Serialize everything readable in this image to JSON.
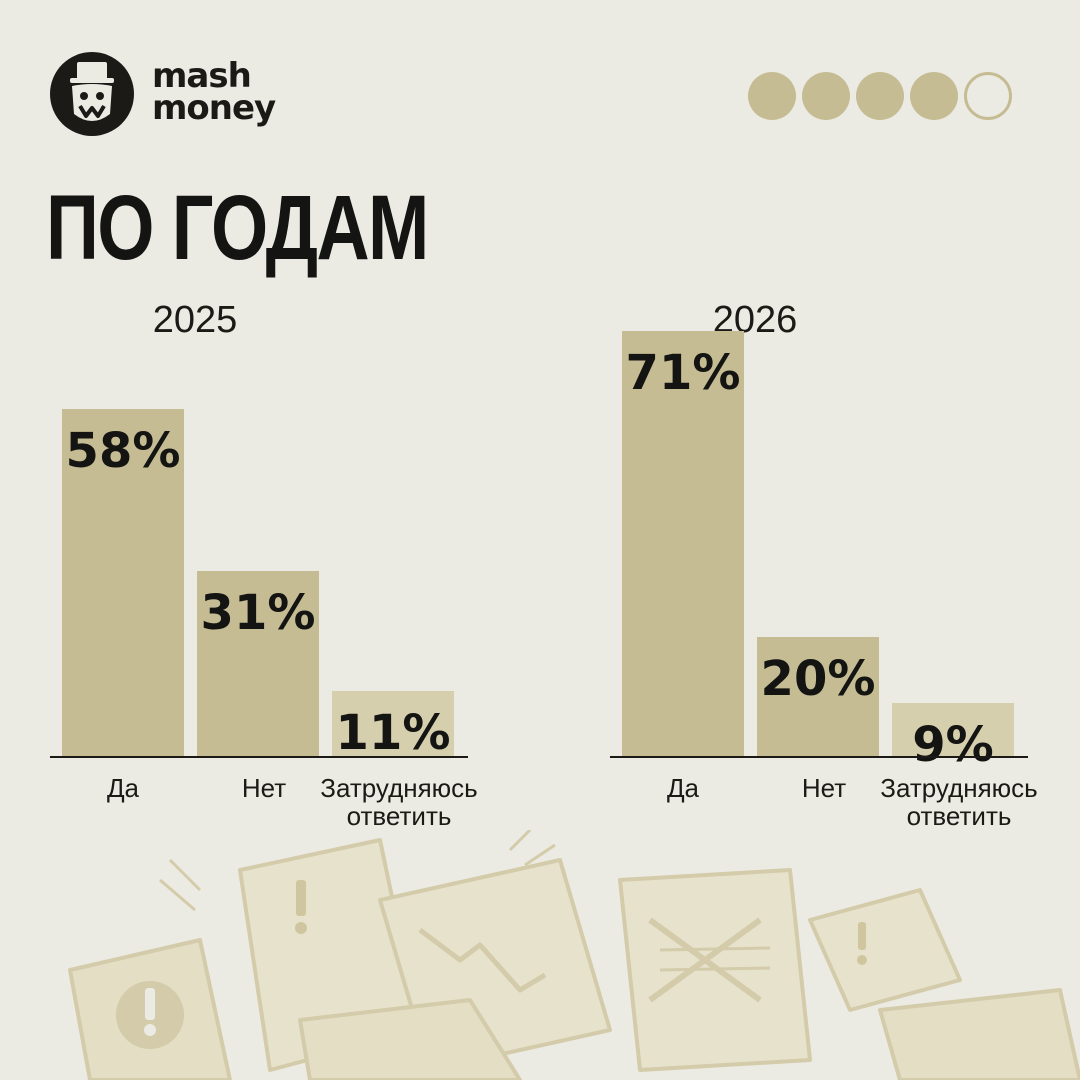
{
  "brand": {
    "line1": "mash",
    "line2": "money"
  },
  "title": "ПО ГОДАМ",
  "pagination": {
    "total": 5,
    "filled": 4
  },
  "colors": {
    "background": "#ecebe3",
    "bar": "#c6bc93",
    "bar_light": "#d6cfae",
    "text": "#141412",
    "axis": "#1b1a17"
  },
  "chart_data": [
    {
      "type": "bar",
      "title": "2025",
      "categories": [
        "Да",
        "Нет",
        "Затрудняюсь ответить"
      ],
      "values": [
        58,
        31,
        11
      ],
      "value_labels": [
        "58%",
        "31%",
        "11%"
      ],
      "ylim": [
        0,
        72
      ]
    },
    {
      "type": "bar",
      "title": "2026",
      "categories": [
        "Да",
        "Нет",
        "Затрудняюсь ответить"
      ],
      "values": [
        71,
        20,
        9
      ],
      "value_labels": [
        "71%",
        "20%",
        "9%"
      ],
      "ylim": [
        0,
        72
      ]
    }
  ]
}
